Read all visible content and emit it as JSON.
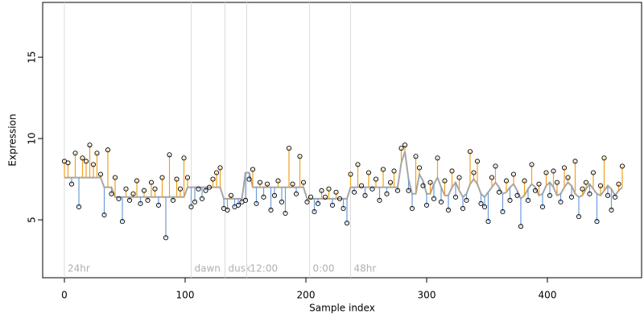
{
  "chart_data": {
    "type": "scatter",
    "x_label": "Sample index",
    "y_label": "Expression",
    "xlim": [
      -18,
      478
    ],
    "ylim": [
      1.44,
      18.37
    ],
    "xticks": [
      0,
      100,
      200,
      300,
      400
    ],
    "yticks": [
      5,
      10,
      15
    ],
    "annotations": [
      {
        "x": 0,
        "label": "24hr"
      },
      {
        "x": 105,
        "label": "dawn"
      },
      {
        "x": 133,
        "label": "dusk"
      },
      {
        "x": 151,
        "label": "12:00"
      },
      {
        "x": 203,
        "label": "0:00"
      },
      {
        "x": 237,
        "label": "48hr"
      }
    ],
    "above_color": "#f0a020",
    "below_color": "#6f9bd8",
    "point_color": "#000000",
    "x": [
      0,
      3,
      6,
      9,
      12,
      15,
      18,
      21,
      24,
      27,
      30,
      33,
      36,
      39,
      42,
      45,
      48,
      51,
      54,
      57,
      60,
      63,
      66,
      69,
      72,
      75,
      78,
      81,
      84,
      87,
      90,
      93,
      96,
      99,
      102,
      105,
      108,
      111,
      114,
      117,
      120,
      123,
      126,
      129,
      132,
      135,
      138,
      141,
      144,
      147,
      150,
      153,
      156,
      159,
      162,
      165,
      168,
      171,
      174,
      177,
      180,
      183,
      186,
      189,
      192,
      195,
      198,
      201,
      204,
      207,
      210,
      213,
      216,
      219,
      222,
      225,
      228,
      231,
      234,
      237,
      240,
      243,
      246,
      249,
      252,
      255,
      258,
      261,
      264,
      267,
      270,
      273,
      276,
      279,
      282,
      285,
      288,
      291,
      294,
      297,
      300,
      303,
      306,
      309,
      312,
      315,
      318,
      321,
      324,
      327,
      330,
      333,
      336,
      339,
      342,
      345,
      348,
      351,
      354,
      357,
      360,
      363,
      366,
      369,
      372,
      375,
      378,
      381,
      384,
      387,
      390,
      393,
      396,
      399,
      402,
      405,
      408,
      411,
      414,
      417,
      420,
      423,
      426,
      429,
      432,
      435,
      438,
      441,
      444,
      447,
      450,
      453,
      456,
      459,
      462
    ],
    "values": [
      8.6,
      8.5,
      7.2,
      9.1,
      5.8,
      8.8,
      8.6,
      9.6,
      8.4,
      9.1,
      7.8,
      5.3,
      9.3,
      6.6,
      7.6,
      6.3,
      4.9,
      6.9,
      6.2,
      6.6,
      7.4,
      6.0,
      6.8,
      6.2,
      7.3,
      6.9,
      5.9,
      7.6,
      3.9,
      9.0,
      6.2,
      7.5,
      6.9,
      8.8,
      7.6,
      5.8,
      6.1,
      6.9,
      6.3,
      6.8,
      7.0,
      7.5,
      7.9,
      8.2,
      5.7,
      5.6,
      6.5,
      5.8,
      5.9,
      6.1,
      6.2,
      7.5,
      8.1,
      6.0,
      7.3,
      6.4,
      7.2,
      5.6,
      6.5,
      7.4,
      6.1,
      5.4,
      9.4,
      7.2,
      6.6,
      8.9,
      7.3,
      6.1,
      6.4,
      5.5,
      6.0,
      6.8,
      6.4,
      6.9,
      5.9,
      6.7,
      6.3,
      5.7,
      4.8,
      7.8,
      6.7,
      8.4,
      7.1,
      6.5,
      7.9,
      6.9,
      7.5,
      6.2,
      8.1,
      6.6,
      7.3,
      8.0,
      6.8,
      9.4,
      9.6,
      6.8,
      5.7,
      8.9,
      8.2,
      7.1,
      5.9,
      7.3,
      6.3,
      8.8,
      6.1,
      7.4,
      5.6,
      8.0,
      6.4,
      7.6,
      5.7,
      6.2,
      9.2,
      7.9,
      8.6,
      6.0,
      5.8,
      4.9,
      7.6,
      8.3,
      6.7,
      5.5,
      7.4,
      6.2,
      7.8,
      6.5,
      4.6,
      7.4,
      6.2,
      8.4,
      6.8,
      7.2,
      5.8,
      7.9,
      6.5,
      8.0,
      7.3,
      6.1,
      8.2,
      7.6,
      6.4,
      8.6,
      5.2,
      6.9,
      7.3,
      6.6,
      7.9,
      4.9,
      7.1,
      8.8,
      6.5,
      5.6,
      6.4,
      7.2,
      8.3
    ],
    "fit": {
      "color": "#a6a6a6",
      "values": [
        7.6,
        7.6,
        7.6,
        7.6,
        7.6,
        7.6,
        7.6,
        7.6,
        7.6,
        7.6,
        7.6,
        7.0,
        7.0,
        7.0,
        6.4,
        6.4,
        6.4,
        6.4,
        6.4,
        6.4,
        6.4,
        6.4,
        6.4,
        6.4,
        6.4,
        6.4,
        6.4,
        6.4,
        6.4,
        6.4,
        6.4,
        6.4,
        6.4,
        6.4,
        7.0,
        7.0,
        7.0,
        7.0,
        7.0,
        7.0,
        7.0,
        7.0,
        7.0,
        7.0,
        6.3,
        6.3,
        6.3,
        6.3,
        6.3,
        6.3,
        7.9,
        7.9,
        7.0,
        7.0,
        7.0,
        7.0,
        7.0,
        7.0,
        7.0,
        7.0,
        7.0,
        7.0,
        7.0,
        7.0,
        7.0,
        7.0,
        7.0,
        6.3,
        6.3,
        6.3,
        6.3,
        6.3,
        6.3,
        6.3,
        6.3,
        6.3,
        6.3,
        6.3,
        6.3,
        7.0,
        7.0,
        7.0,
        7.0,
        7.0,
        7.0,
        7.0,
        7.0,
        7.0,
        7.0,
        7.0,
        7.0,
        7.0,
        7.0,
        8.5,
        9.2,
        7.5,
        6.6,
        6.6,
        7.8,
        7.4,
        6.6,
        6.6,
        7.2,
        7.6,
        7.0,
        6.5,
        6.5,
        7.0,
        7.3,
        6.8,
        6.4,
        6.6,
        7.2,
        7.5,
        7.2,
        6.6,
        6.4,
        6.7,
        7.0,
        7.3,
        7.0,
        6.6,
        6.7,
        7.0,
        7.2,
        6.8,
        6.3,
        6.5,
        6.9,
        7.2,
        7.0,
        6.5,
        6.6,
        7.1,
        7.3,
        7.0,
        6.5,
        6.6,
        7.0,
        7.3,
        7.1,
        6.6,
        6.4,
        6.5,
        6.9,
        7.2,
        6.9,
        6.6,
        6.5,
        6.8,
        7.1,
        6.9,
        6.5,
        6.8,
        7.0
      ]
    }
  }
}
